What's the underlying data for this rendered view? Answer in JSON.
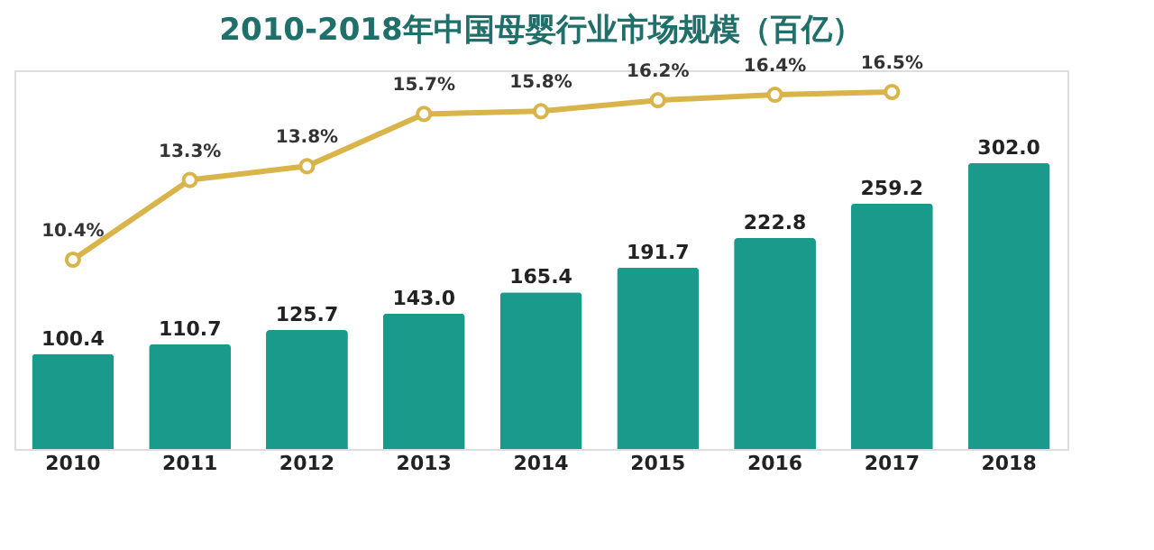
{
  "chart_data": {
    "type": "bar",
    "title": "2010-2018年中国母婴行业市场规模（百亿）",
    "categories": [
      "2010",
      "2011",
      "2012",
      "2013",
      "2014",
      "2015",
      "2016",
      "2017",
      "2018"
    ],
    "series": [
      {
        "color": "#1a9a8a",
        "values": [
          100.4,
          110.7,
          125.7,
          143.0,
          165.4,
          191.7,
          222.8,
          259.2,
          302.0
        ],
        "value_labels": [
          "100.4",
          "110.7",
          "125.7",
          "143.0",
          "165.4",
          "191.7",
          "222.8",
          "259.2",
          "302.0"
        ]
      },
      {
        "type": "line",
        "axis": "y2",
        "color": "#d9b44a",
        "values": [
          10.4,
          13.3,
          13.8,
          15.7,
          15.8,
          16.2,
          16.4,
          16.5,
          null
        ],
        "value_labels": [
          "10.4%",
          "13.3%",
          "13.8%",
          "15.7%",
          "15.8%",
          "16.2%",
          "16.4%",
          "16.5%",
          null
        ]
      }
    ],
    "ylim": [
      0,
      400
    ],
    "tick_labels": "x",
    "grid": false,
    "marker": "circle",
    "data_labels": true
  }
}
